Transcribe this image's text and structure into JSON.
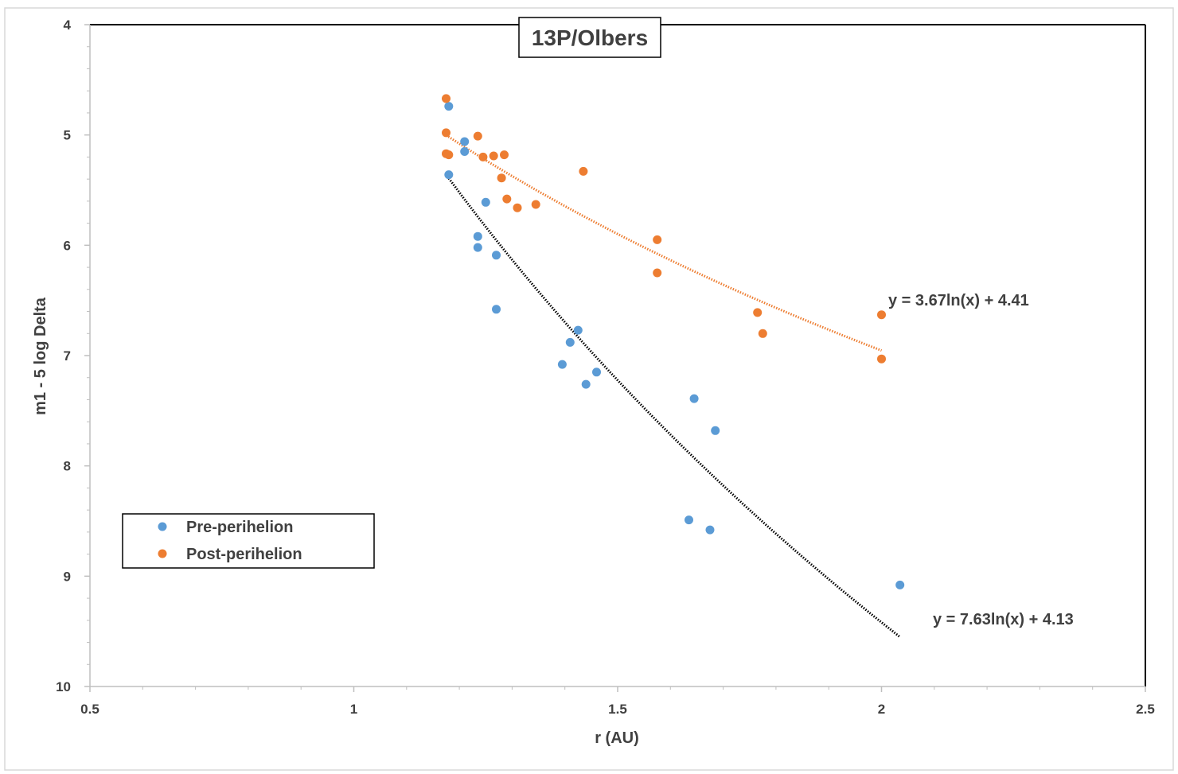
{
  "colors": {
    "pre": "#5B9BD5",
    "post": "#ED7D31",
    "pre_trend": "#000000",
    "post_trend": "#ED7D31",
    "axis": "#000000",
    "text": "#404040"
  },
  "chart_data": {
    "type": "scatter",
    "title": "13P/Olbers",
    "xlabel": "r (AU)",
    "ylabel": "m1 - 5 log Delta",
    "xlim": [
      0.5,
      2.5
    ],
    "ylim": [
      4,
      10
    ],
    "y_inverted": true,
    "x_ticks": [
      0.5,
      1,
      1.5,
      2,
      2.5
    ],
    "x_tick_labels": [
      "0.5",
      "1",
      "1.5",
      "2",
      "2.5"
    ],
    "y_ticks": [
      4,
      5,
      6,
      7,
      8,
      9,
      10
    ],
    "y_tick_labels": [
      "4",
      "5",
      "6",
      "7",
      "8",
      "9",
      "10"
    ],
    "grid": false,
    "legend_position": "bottom-left",
    "series": [
      {
        "name": "Pre-perihelion",
        "color": "#5B9BD5",
        "points": [
          [
            1.18,
            4.74
          ],
          [
            1.21,
            5.06
          ],
          [
            1.21,
            5.15
          ],
          [
            1.18,
            5.36
          ],
          [
            1.25,
            5.61
          ],
          [
            1.235,
            5.92
          ],
          [
            1.235,
            6.02
          ],
          [
            1.27,
            6.09
          ],
          [
            1.27,
            6.58
          ],
          [
            1.425,
            6.77
          ],
          [
            1.41,
            6.88
          ],
          [
            1.395,
            7.08
          ],
          [
            1.46,
            7.15
          ],
          [
            1.44,
            7.26
          ],
          [
            1.645,
            7.39
          ],
          [
            1.685,
            7.68
          ],
          [
            1.635,
            8.49
          ],
          [
            1.675,
            8.58
          ],
          [
            2.035,
            9.08
          ]
        ]
      },
      {
        "name": "Post-perihelion",
        "color": "#ED7D31",
        "points": [
          [
            1.175,
            4.67
          ],
          [
            1.175,
            4.98
          ],
          [
            1.235,
            5.01
          ],
          [
            1.175,
            5.17
          ],
          [
            1.18,
            5.18
          ],
          [
            1.245,
            5.2
          ],
          [
            1.265,
            5.19
          ],
          [
            1.285,
            5.18
          ],
          [
            1.435,
            5.33
          ],
          [
            1.28,
            5.39
          ],
          [
            1.29,
            5.58
          ],
          [
            1.31,
            5.66
          ],
          [
            1.345,
            5.63
          ],
          [
            1.575,
            5.95
          ],
          [
            1.575,
            6.25
          ],
          [
            1.765,
            6.61
          ],
          [
            1.775,
            6.8
          ],
          [
            2.0,
            6.63
          ],
          [
            2.0,
            7.03
          ]
        ]
      }
    ],
    "trendlines": [
      {
        "series": "Pre-perihelion",
        "type": "log",
        "a": 7.63,
        "b": 4.13,
        "x_range": [
          1.18,
          2.035
        ],
        "color": "#000000",
        "label": "y = 7.63ln(x) + 4.13"
      },
      {
        "series": "Post-perihelion",
        "type": "log",
        "a": 3.67,
        "b": 4.41,
        "x_range": [
          1.175,
          2.0
        ],
        "color": "#ED7D31",
        "label": "y = 3.67ln(x) + 4.41"
      }
    ]
  }
}
